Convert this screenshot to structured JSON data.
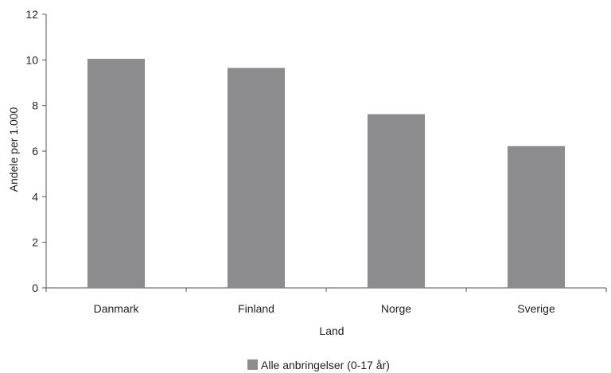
{
  "chart_data": {
    "type": "bar",
    "title": "",
    "xlabel": "Land",
    "ylabel": "Andele per 1.000",
    "ylim": [
      0,
      12
    ],
    "yticks": [
      0,
      2,
      4,
      6,
      8,
      10,
      12
    ],
    "categories": [
      "Danmark",
      "Finland",
      "Norge",
      "Sverige"
    ],
    "series": [
      {
        "name": "Alle anbringelser (0-17 år)",
        "values": [
          10.05,
          9.65,
          7.62,
          6.22
        ],
        "color": "#8c8c8e"
      }
    ],
    "grid": false,
    "legend": "bottom-center",
    "axis_color": "#555555"
  }
}
